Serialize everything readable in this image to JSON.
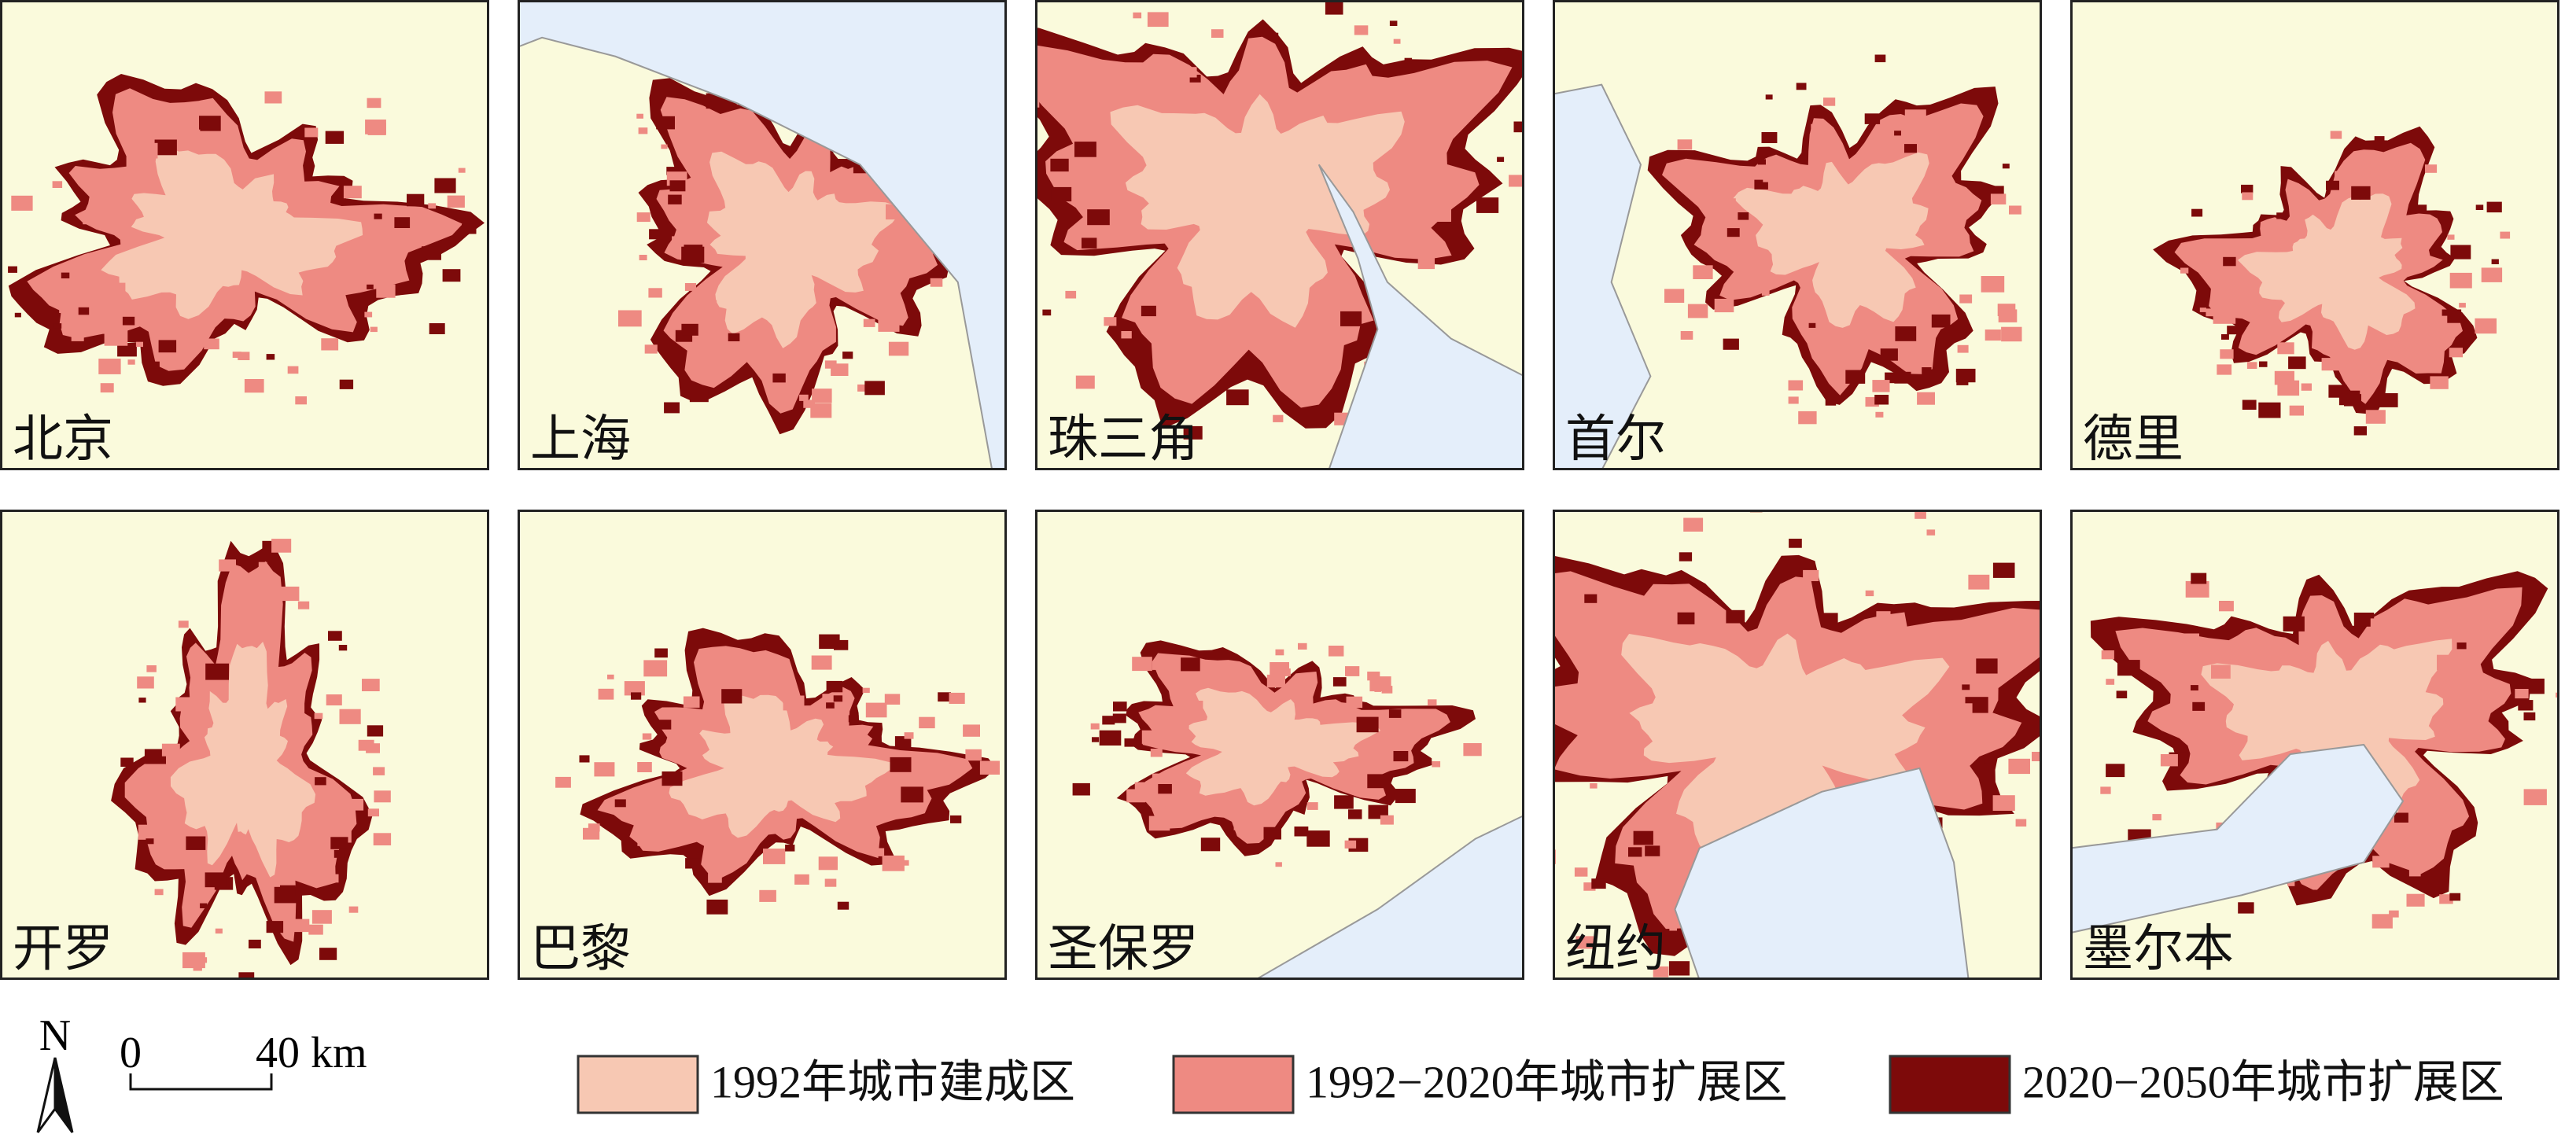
{
  "panels": [
    {
      "label": "北京"
    },
    {
      "label": "上海"
    },
    {
      "label": "珠三角"
    },
    {
      "label": "首尔"
    },
    {
      "label": "德里"
    },
    {
      "label": "开罗"
    },
    {
      "label": "巴黎"
    },
    {
      "label": "圣保罗"
    },
    {
      "label": "纽约"
    },
    {
      "label": "墨尔本"
    }
  ],
  "north": "N",
  "scale_bar": {
    "start": "0",
    "end": "40 km"
  },
  "legend": {
    "items": [
      {
        "label": "1992年城市建成区",
        "color": "#f7c8b3"
      },
      {
        "label": "1992−2020年城市扩展区",
        "color": "#ee8a82"
      },
      {
        "label": "2020−2050年城市扩展区",
        "color": "#7d0a0a"
      }
    ]
  }
}
